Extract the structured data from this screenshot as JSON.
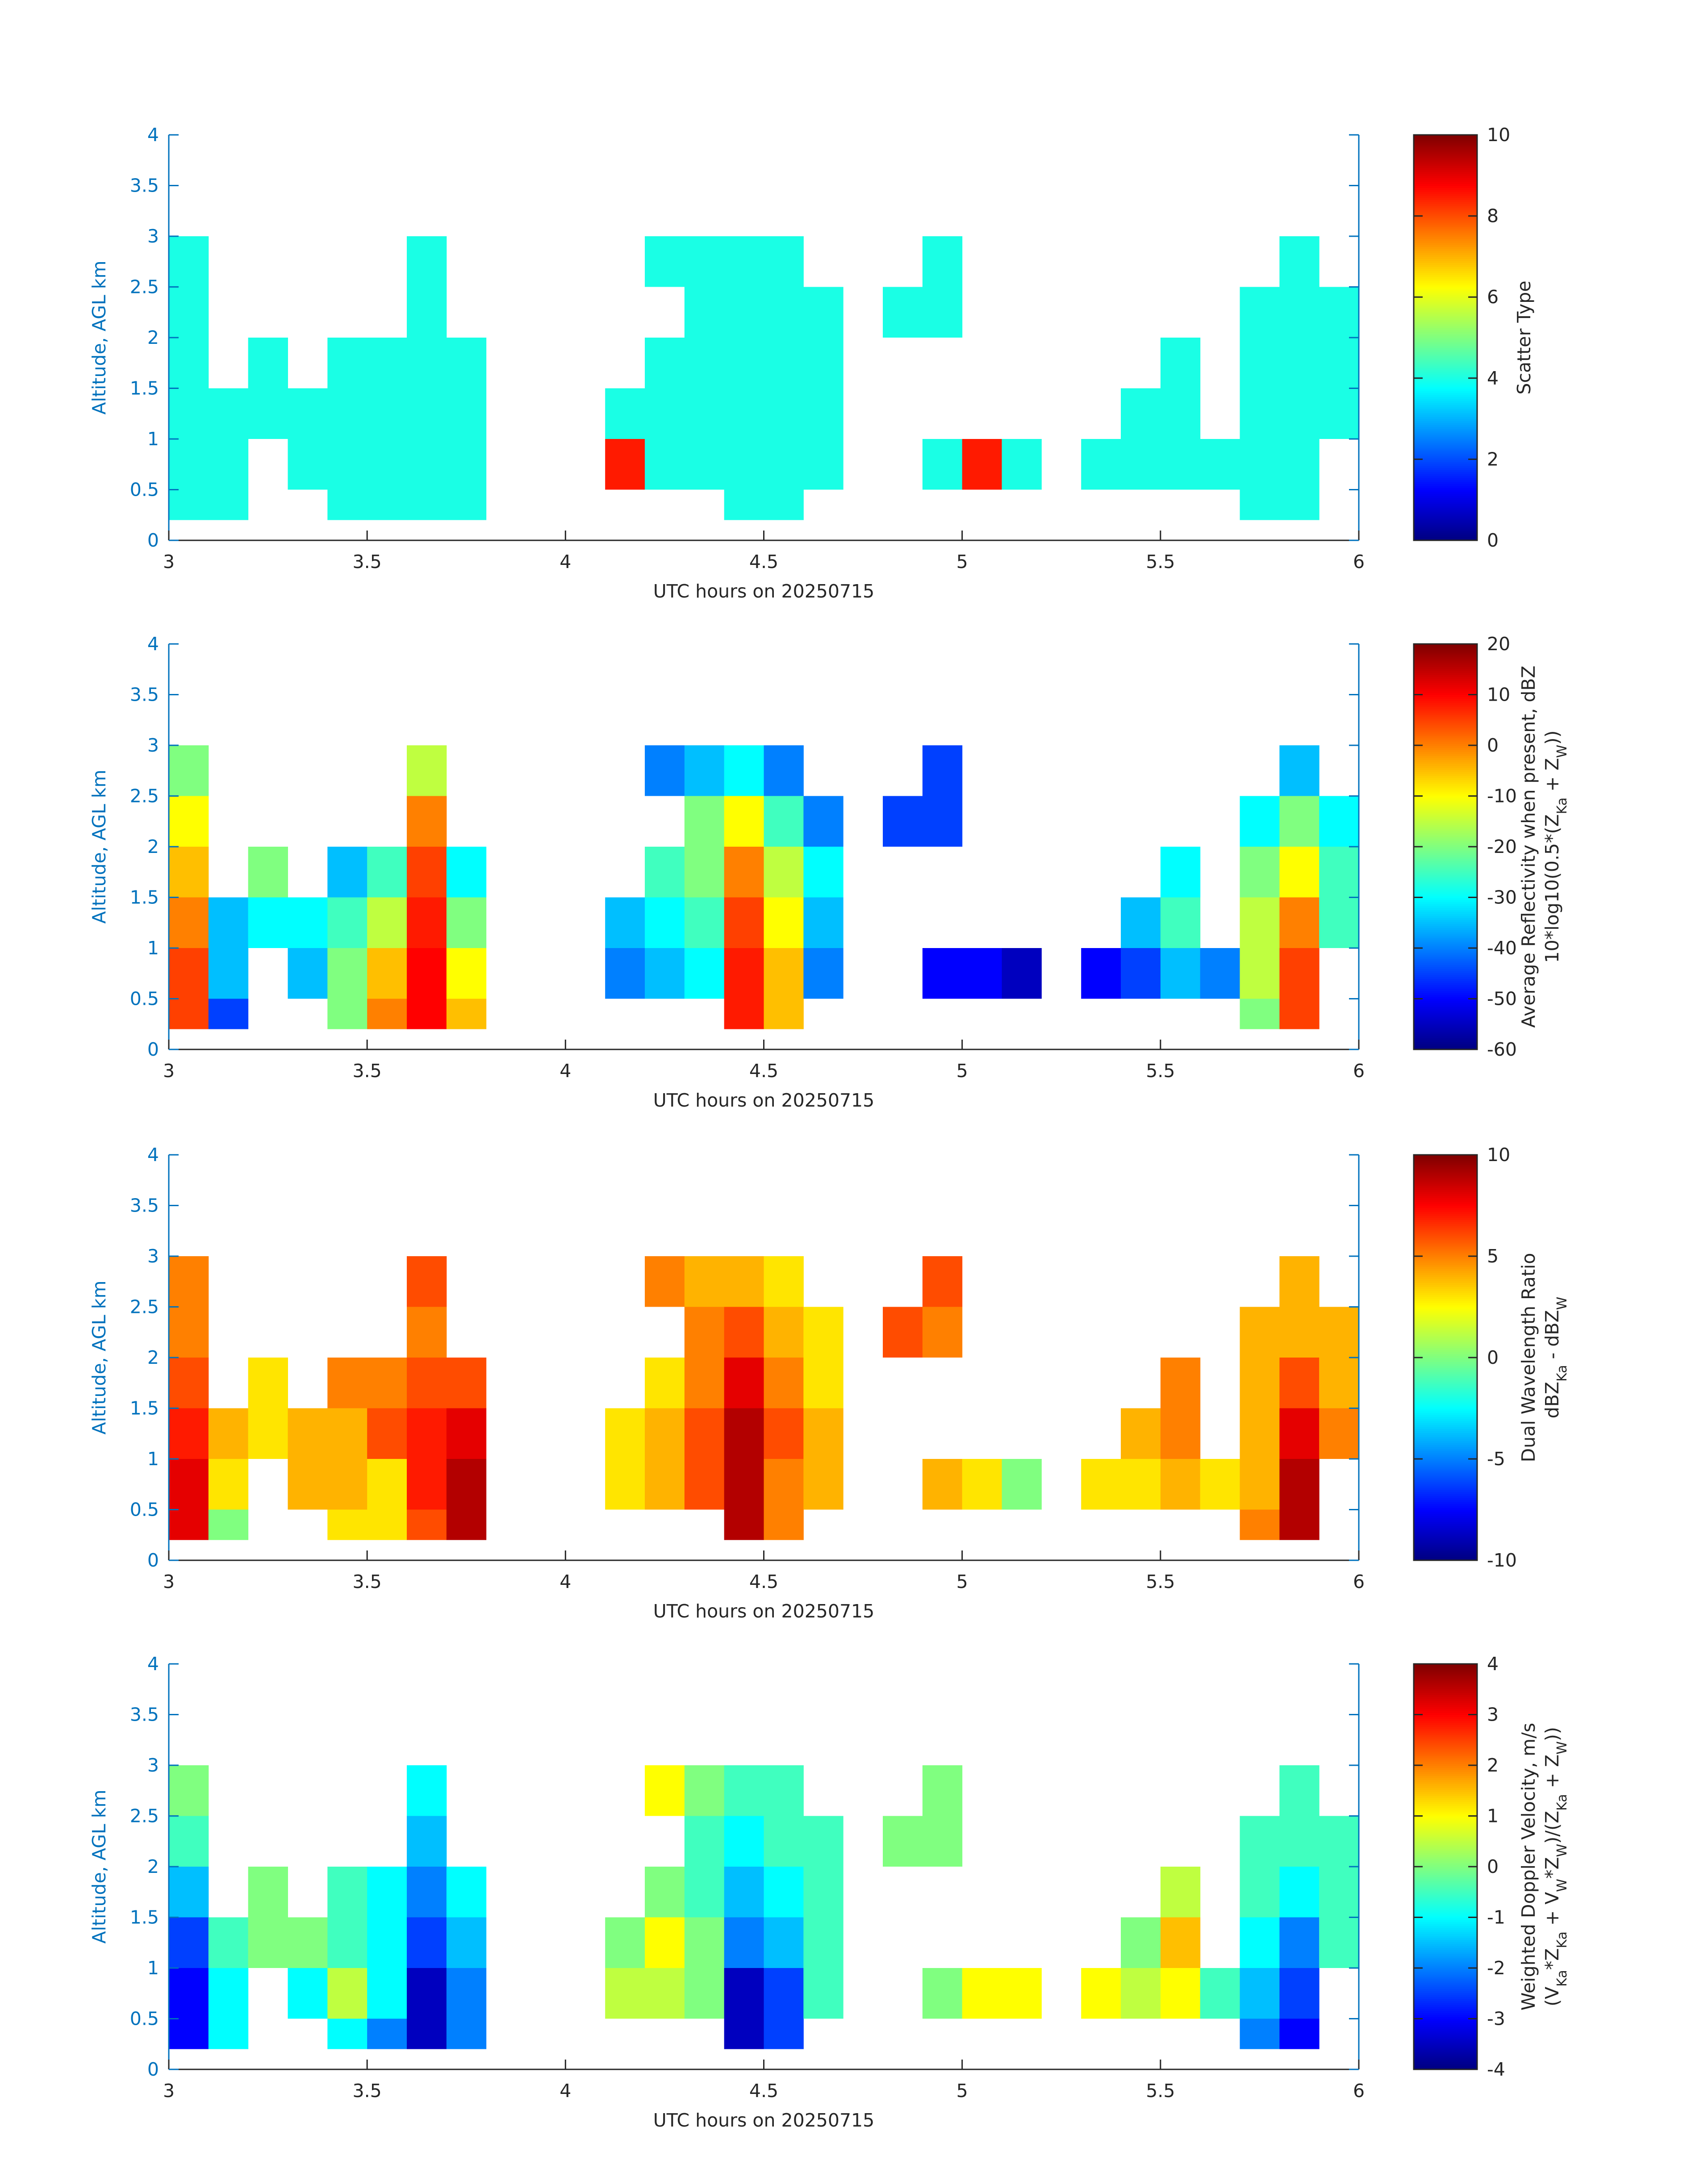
{
  "chart_data": [
    {
      "type": "heatmap",
      "colormap": "jet",
      "xlabel": "UTC hours on 20250715",
      "ylabel": "Altitude, AGL km",
      "clabel": [
        [
          "Scatter Type"
        ]
      ],
      "x": [
        3,
        3.1,
        3.2,
        3.3,
        3.4,
        3.5,
        3.6,
        3.7,
        3.8,
        3.9,
        4,
        4.1,
        4.2,
        4.3,
        4.4,
        4.5,
        4.6,
        4.7,
        4.8,
        4.9,
        5,
        5.1,
        5.2,
        5.3,
        5.4,
        5.5,
        5.6,
        5.7,
        5.8,
        5.9,
        6
      ],
      "y": [
        0.2,
        0.5,
        1,
        1.5,
        2,
        2.5,
        3
      ],
      "xlim": [
        3,
        6
      ],
      "xticks": [
        3,
        3.5,
        4,
        4.5,
        5,
        5.5,
        6
      ],
      "ylim": [
        0,
        4
      ],
      "yticks": [
        0,
        0.5,
        1,
        1.5,
        2,
        2.5,
        3,
        3.5,
        4
      ],
      "clim": [
        0,
        10
      ],
      "cticks": [
        0,
        2,
        4,
        6,
        8,
        10
      ],
      "values": [
        [
          4,
          4,
          null,
          null,
          4,
          4,
          4,
          4,
          null,
          null,
          null,
          null,
          null,
          null,
          4,
          4,
          null,
          null,
          null,
          null,
          null,
          null,
          null,
          null,
          null,
          null,
          null,
          4,
          4,
          null
        ],
        [
          4,
          4,
          null,
          4,
          4,
          4,
          4,
          4,
          null,
          null,
          null,
          8.5,
          4,
          4,
          4,
          4,
          4,
          null,
          null,
          4,
          8.5,
          4,
          null,
          4,
          4,
          4,
          4,
          4,
          4,
          null
        ],
        [
          4,
          4,
          4,
          4,
          4,
          4,
          4,
          4,
          null,
          null,
          null,
          4,
          4,
          4,
          4,
          4,
          4,
          null,
          null,
          null,
          null,
          null,
          null,
          null,
          4,
          4,
          null,
          4,
          4,
          4
        ],
        [
          4,
          null,
          4,
          null,
          4,
          4,
          4,
          4,
          null,
          null,
          null,
          null,
          4,
          4,
          4,
          4,
          4,
          null,
          null,
          null,
          null,
          null,
          null,
          null,
          null,
          4,
          null,
          4,
          4,
          4
        ],
        [
          4,
          null,
          null,
          null,
          null,
          null,
          4,
          null,
          null,
          null,
          null,
          null,
          null,
          4,
          4,
          4,
          4,
          null,
          4,
          4,
          null,
          null,
          null,
          null,
          null,
          null,
          null,
          4,
          4,
          4
        ],
        [
          4,
          null,
          null,
          null,
          null,
          null,
          4,
          null,
          null,
          null,
          null,
          null,
          4,
          4,
          4,
          4,
          null,
          null,
          null,
          4,
          null,
          null,
          null,
          null,
          null,
          null,
          null,
          null,
          4,
          null
        ]
      ]
    },
    {
      "type": "heatmap",
      "colormap": "jet",
      "xlabel": "UTC hours on 20250715",
      "ylabel": "Altitude, AGL km",
      "clabel": [
        [
          "Average Reflectivity when present, dBZ"
        ],
        [
          "10*log10(0.5*(Z",
          {
            "sub": "Ka"
          },
          " + Z",
          {
            "sub": "W"
          },
          "))"
        ]
      ],
      "x": [
        3,
        3.1,
        3.2,
        3.3,
        3.4,
        3.5,
        3.6,
        3.7,
        3.8,
        3.9,
        4,
        4.1,
        4.2,
        4.3,
        4.4,
        4.5,
        4.6,
        4.7,
        4.8,
        4.9,
        5,
        5.1,
        5.2,
        5.3,
        5.4,
        5.5,
        5.6,
        5.7,
        5.8,
        5.9,
        6
      ],
      "y": [
        0.2,
        0.5,
        1,
        1.5,
        2,
        2.5,
        3
      ],
      "xlim": [
        3,
        6
      ],
      "xticks": [
        3,
        3.5,
        4,
        4.5,
        5,
        5.5,
        6
      ],
      "ylim": [
        0,
        4
      ],
      "yticks": [
        0,
        0.5,
        1,
        1.5,
        2,
        2.5,
        3,
        3.5,
        4
      ],
      "clim": [
        -60,
        20
      ],
      "cticks": [
        -60,
        -50,
        -40,
        -30,
        -20,
        -10,
        0,
        10,
        20
      ],
      "values": [
        [
          5,
          -45,
          null,
          null,
          -20,
          0,
          10,
          -5,
          null,
          null,
          null,
          null,
          null,
          null,
          8,
          -5,
          null,
          null,
          null,
          null,
          null,
          null,
          null,
          null,
          null,
          null,
          null,
          -20,
          5,
          null
        ],
        [
          5,
          -35,
          null,
          -35,
          -20,
          -5,
          10,
          -10,
          null,
          null,
          null,
          -40,
          -35,
          -30,
          8,
          -5,
          -40,
          null,
          null,
          -50,
          -50,
          -55,
          null,
          -50,
          -45,
          -35,
          -40,
          -15,
          5,
          null
        ],
        [
          0,
          -35,
          -30,
          -30,
          -25,
          -15,
          8,
          -20,
          null,
          null,
          null,
          -35,
          -30,
          -25,
          5,
          -10,
          -35,
          null,
          null,
          null,
          null,
          null,
          null,
          null,
          -35,
          -25,
          null,
          -15,
          0,
          -25
        ],
        [
          -5,
          null,
          -20,
          null,
          -35,
          -25,
          5,
          -30,
          null,
          null,
          null,
          null,
          -25,
          -20,
          0,
          -15,
          -30,
          null,
          null,
          null,
          null,
          null,
          null,
          null,
          null,
          -30,
          null,
          -20,
          -10,
          -25
        ],
        [
          -10,
          null,
          null,
          null,
          null,
          null,
          0,
          null,
          null,
          null,
          null,
          null,
          null,
          -20,
          -10,
          -25,
          -40,
          null,
          -45,
          -45,
          null,
          null,
          null,
          null,
          null,
          null,
          null,
          -30,
          -20,
          -30
        ],
        [
          -20,
          null,
          null,
          null,
          null,
          null,
          -15,
          null,
          null,
          null,
          null,
          null,
          -40,
          -35,
          -30,
          -40,
          null,
          null,
          null,
          -45,
          null,
          null,
          null,
          null,
          null,
          null,
          null,
          null,
          -35,
          null
        ]
      ]
    },
    {
      "type": "heatmap",
      "colormap": "jet",
      "xlabel": "UTC hours on 20250715",
      "ylabel": "Altitude, AGL km",
      "clabel": [
        [
          "Dual Wavelength Ratio"
        ],
        [
          "dBZ",
          {
            "sub": "Ka"
          },
          " - dBZ",
          {
            "sub": "W"
          }
        ]
      ],
      "x": [
        3,
        3.1,
        3.2,
        3.3,
        3.4,
        3.5,
        3.6,
        3.7,
        3.8,
        3.9,
        4,
        4.1,
        4.2,
        4.3,
        4.4,
        4.5,
        4.6,
        4.7,
        4.8,
        4.9,
        5,
        5.1,
        5.2,
        5.3,
        5.4,
        5.5,
        5.6,
        5.7,
        5.8,
        5.9,
        6
      ],
      "y": [
        0.2,
        0.5,
        1,
        1.5,
        2,
        2.5,
        3
      ],
      "xlim": [
        3,
        6
      ],
      "xticks": [
        3,
        3.5,
        4,
        4.5,
        5,
        5.5,
        6
      ],
      "ylim": [
        0,
        4
      ],
      "yticks": [
        0,
        0.5,
        1,
        1.5,
        2,
        2.5,
        3,
        3.5,
        4
      ],
      "clim": [
        -10,
        10
      ],
      "cticks": [
        -10,
        -5,
        0,
        5,
        10
      ],
      "values": [
        [
          8,
          0,
          null,
          null,
          3,
          3,
          6,
          9,
          null,
          null,
          null,
          null,
          null,
          null,
          9,
          5,
          null,
          null,
          null,
          null,
          null,
          null,
          null,
          null,
          null,
          null,
          null,
          5,
          9,
          null
        ],
        [
          8,
          3,
          null,
          4,
          4,
          3,
          7,
          9,
          null,
          null,
          null,
          3,
          4,
          6,
          9,
          5,
          4,
          null,
          null,
          4,
          3,
          0,
          null,
          3,
          3,
          4,
          3,
          4,
          9,
          null
        ],
        [
          7,
          4,
          3,
          4,
          4,
          6,
          7,
          8,
          null,
          null,
          null,
          3,
          4,
          6,
          9,
          6,
          4,
          null,
          null,
          null,
          null,
          null,
          null,
          null,
          4,
          5,
          null,
          4,
          8,
          5
        ],
        [
          6,
          null,
          3,
          null,
          5,
          5,
          6,
          6,
          null,
          null,
          null,
          null,
          3,
          5,
          8,
          5,
          3,
          null,
          null,
          null,
          null,
          null,
          null,
          null,
          null,
          5,
          null,
          4,
          6,
          4
        ],
        [
          5,
          null,
          null,
          null,
          null,
          null,
          5,
          null,
          null,
          null,
          null,
          null,
          null,
          5,
          6,
          4,
          3,
          null,
          6,
          5,
          null,
          null,
          null,
          null,
          null,
          null,
          null,
          4,
          4,
          4
        ],
        [
          5,
          null,
          null,
          null,
          null,
          null,
          6,
          null,
          null,
          null,
          null,
          null,
          5,
          4,
          4,
          3,
          null,
          null,
          null,
          6,
          null,
          null,
          null,
          null,
          null,
          null,
          null,
          null,
          4,
          null
        ]
      ]
    },
    {
      "type": "heatmap",
      "colormap": "jet",
      "xlabel": "UTC hours on 20250715",
      "ylabel": "Altitude, AGL km",
      "clabel": [
        [
          "Weighted Doppler Velocity, m/s"
        ],
        [
          "(V",
          {
            "sub": "Ka"
          },
          "*Z",
          {
            "sub": "Ka"
          },
          " + V",
          {
            "sub": "W"
          },
          "*Z",
          {
            "sub": "W"
          },
          ")/(Z",
          {
            "sub": "Ka"
          },
          " + Z",
          {
            "sub": "W"
          },
          "))"
        ]
      ],
      "x": [
        3,
        3.1,
        3.2,
        3.3,
        3.4,
        3.5,
        3.6,
        3.7,
        3.8,
        3.9,
        4,
        4.1,
        4.2,
        4.3,
        4.4,
        4.5,
        4.6,
        4.7,
        4.8,
        4.9,
        5,
        5.1,
        5.2,
        5.3,
        5.4,
        5.5,
        5.6,
        5.7,
        5.8,
        5.9,
        6
      ],
      "y": [
        0.2,
        0.5,
        1,
        1.5,
        2,
        2.5,
        3
      ],
      "xlim": [
        3,
        6
      ],
      "xticks": [
        3,
        3.5,
        4,
        4.5,
        5,
        5.5,
        6
      ],
      "ylim": [
        0,
        4
      ],
      "yticks": [
        0,
        0.5,
        1,
        1.5,
        2,
        2.5,
        3,
        3.5,
        4
      ],
      "clim": [
        -4,
        4
      ],
      "cticks": [
        -4,
        -3,
        -2,
        -1,
        0,
        1,
        2,
        3,
        4
      ],
      "values": [
        [
          -3,
          -1,
          null,
          null,
          -1,
          -2,
          -3.5,
          -2,
          null,
          null,
          null,
          null,
          null,
          null,
          -3.5,
          -2.5,
          null,
          null,
          null,
          null,
          null,
          null,
          null,
          null,
          null,
          null,
          null,
          -2,
          -3,
          null
        ],
        [
          -3,
          -1,
          null,
          -1,
          0.5,
          -1,
          -3.5,
          -2,
          null,
          null,
          null,
          0.5,
          0.5,
          0,
          -3.5,
          -2.5,
          -0.5,
          null,
          null,
          0,
          1,
          1,
          null,
          1,
          0.5,
          1,
          -0.5,
          -1.5,
          -2.5,
          null
        ],
        [
          -2.5,
          -0.5,
          0,
          0,
          -0.5,
          -1,
          -2.5,
          -1.5,
          null,
          null,
          null,
          0,
          1,
          0,
          -2,
          -1.5,
          -0.5,
          null,
          null,
          null,
          null,
          null,
          null,
          null,
          0,
          1.5,
          null,
          -1,
          -2,
          -0.5
        ],
        [
          -1.5,
          null,
          0,
          null,
          -0.5,
          -1,
          -2,
          -1,
          null,
          null,
          null,
          null,
          0,
          -0.5,
          -1.5,
          -1,
          -0.5,
          null,
          null,
          null,
          null,
          null,
          null,
          null,
          null,
          0.5,
          null,
          -0.5,
          -1,
          -0.5
        ],
        [
          -0.5,
          null,
          null,
          null,
          null,
          null,
          -1.5,
          null,
          null,
          null,
          null,
          null,
          null,
          -0.5,
          -1,
          -0.5,
          -0.5,
          null,
          0,
          0,
          null,
          null,
          null,
          null,
          null,
          null,
          null,
          -0.5,
          -0.5,
          -0.5
        ],
        [
          0,
          null,
          null,
          null,
          null,
          null,
          -1,
          null,
          null,
          null,
          null,
          null,
          1,
          0,
          -0.5,
          -0.5,
          null,
          null,
          null,
          0,
          null,
          null,
          null,
          null,
          null,
          null,
          null,
          null,
          -0.5,
          null
        ]
      ]
    }
  ]
}
